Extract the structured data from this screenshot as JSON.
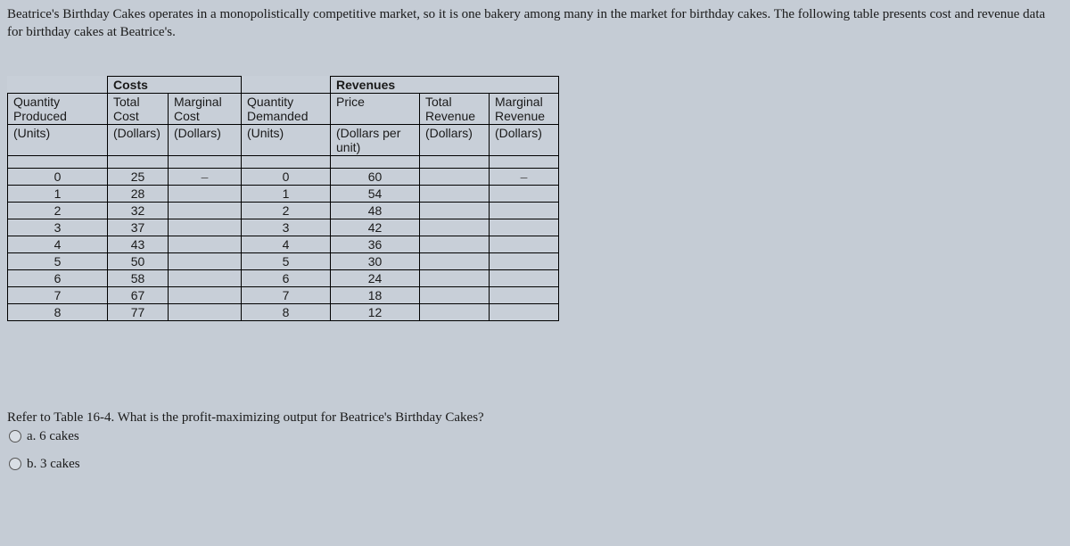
{
  "intro": "Beatrice's Birthday Cakes operates in a monopolistically competitive market, so it is one bakery among many in the market for birthday cakes. The following table presents cost and revenue data for birthday cakes at Beatrice's.",
  "table": {
    "sections": {
      "costs": "Costs",
      "revenues": "Revenues"
    },
    "headers": {
      "qty_prod": "Quantity Produced",
      "total_cost": "Total Cost",
      "marginal_cost": "Marginal Cost",
      "qty_dem": "Quantity Demanded",
      "price": "Price",
      "total_rev": "Total Revenue",
      "marginal_rev": "Marginal Revenue"
    },
    "units": {
      "qty_prod": "(Units)",
      "total_cost": "(Dollars)",
      "marginal_cost": "(Dollars)",
      "qty_dem": "(Units)",
      "price": "(Dollars per unit)",
      "total_rev": "(Dollars)",
      "marginal_rev": "(Dollars)"
    },
    "rows": [
      {
        "qp": "0",
        "tc": "25",
        "mc": "–",
        "qd": "0",
        "p": "60",
        "tr": "",
        "mr": "–"
      },
      {
        "qp": "1",
        "tc": "28",
        "mc": "",
        "qd": "1",
        "p": "54",
        "tr": "",
        "mr": ""
      },
      {
        "qp": "2",
        "tc": "32",
        "mc": "",
        "qd": "2",
        "p": "48",
        "tr": "",
        "mr": ""
      },
      {
        "qp": "3",
        "tc": "37",
        "mc": "",
        "qd": "3",
        "p": "42",
        "tr": "",
        "mr": ""
      },
      {
        "qp": "4",
        "tc": "43",
        "mc": "",
        "qd": "4",
        "p": "36",
        "tr": "",
        "mr": ""
      },
      {
        "qp": "5",
        "tc": "50",
        "mc": "",
        "qd": "5",
        "p": "30",
        "tr": "",
        "mr": ""
      },
      {
        "qp": "6",
        "tc": "58",
        "mc": "",
        "qd": "6",
        "p": "24",
        "tr": "",
        "mr": ""
      },
      {
        "qp": "7",
        "tc": "67",
        "mc": "",
        "qd": "7",
        "p": "18",
        "tr": "",
        "mr": ""
      },
      {
        "qp": "8",
        "tc": "77",
        "mc": "",
        "qd": "8",
        "p": "12",
        "tr": "",
        "mr": ""
      }
    ]
  },
  "question": "Refer to Table 16-4. What is the profit-maximizing output for Beatrice's Birthday Cakes?",
  "options": {
    "a": "a. 6 cakes",
    "b": "b. 3 cakes"
  },
  "colors": {
    "background": "#c5ccd5",
    "border": "#000000",
    "text": "#1a1a1a"
  }
}
